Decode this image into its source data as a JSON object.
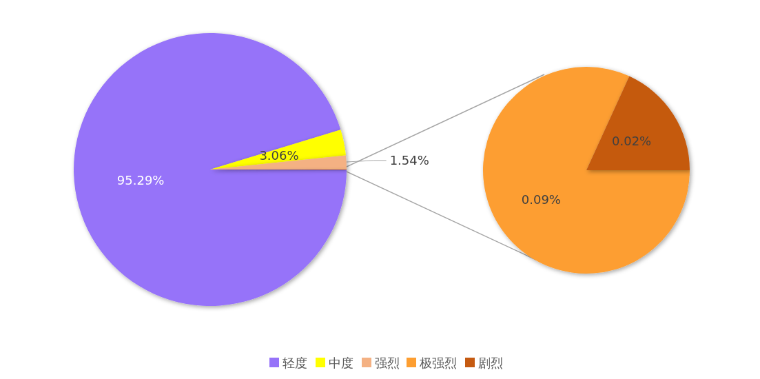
{
  "chart_data": [
    {
      "type": "pie",
      "categories": [
        "轻度",
        "中度",
        "强烈",
        null
      ],
      "values": [
        95.29,
        3.06,
        1.54,
        0.11
      ],
      "colors": [
        "#9673f9",
        "#ffff00",
        "#f4b183",
        "#fd9e31"
      ],
      "value_labels": [
        "95.29%",
        "3.06%",
        "1.54%",
        null
      ],
      "legend": "bottom"
    },
    {
      "type": "pie",
      "categories": [
        "极强烈",
        "剧烈"
      ],
      "values": [
        0.09,
        0.02
      ],
      "colors": [
        "#fd9e31",
        "#c55a11"
      ],
      "value_labels": [
        "0.09%",
        "0.02%"
      ],
      "legend": "bottom"
    }
  ]
}
